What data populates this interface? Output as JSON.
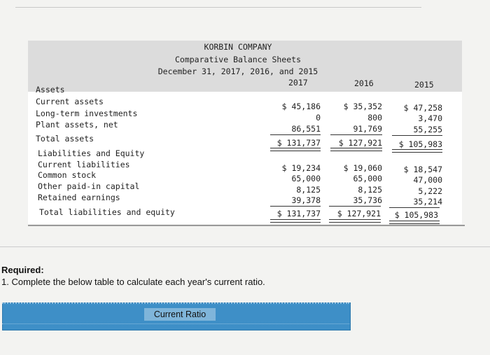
{
  "company": "KORBIN COMPANY",
  "statement": "Comparative Balance Sheets",
  "date_line": "December 31, 2017, 2016, and 2015",
  "years": [
    "2017",
    "2016",
    "2015"
  ],
  "rows": [
    {
      "label": "Assets",
      "values": [
        "",
        "",
        ""
      ]
    },
    {
      "label": "Current assets",
      "values": [
        "$ 45,186",
        "$ 35,352",
        "$ 47,258"
      ]
    },
    {
      "label": "Long-term investments",
      "values": [
        "0",
        "800",
        "3,470"
      ]
    },
    {
      "label": "Plant assets, net",
      "values": [
        "86,551",
        "91,769",
        "55,255"
      ]
    },
    {
      "label": "Total assets",
      "values": [
        "$ 131,737",
        "$ 127,921",
        "$ 105,983"
      ]
    },
    {
      "label": "Liabilities and Equity",
      "values": [
        "",
        "",
        ""
      ]
    },
    {
      "label": "Current liabilities",
      "values": [
        "$ 19,234",
        "$ 19,060",
        "$ 18,547"
      ]
    },
    {
      "label": "Common stock",
      "values": [
        "65,000",
        "65,000",
        "47,000"
      ]
    },
    {
      "label": "Other paid-in capital",
      "values": [
        "8,125",
        "8,125",
        "5,222"
      ]
    },
    {
      "label": "Retained earnings",
      "values": [
        "39,378",
        "35,736",
        "35,214"
      ]
    },
    {
      "label": "Total liabilities and equity",
      "values": [
        "$ 131,737",
        "$ 127,921",
        "$ 105,983"
      ]
    }
  ],
  "required": {
    "heading": "Required:",
    "item1": "1. Complete the below table to calculate each year's current ratio."
  },
  "table_header": "Current Ratio"
}
